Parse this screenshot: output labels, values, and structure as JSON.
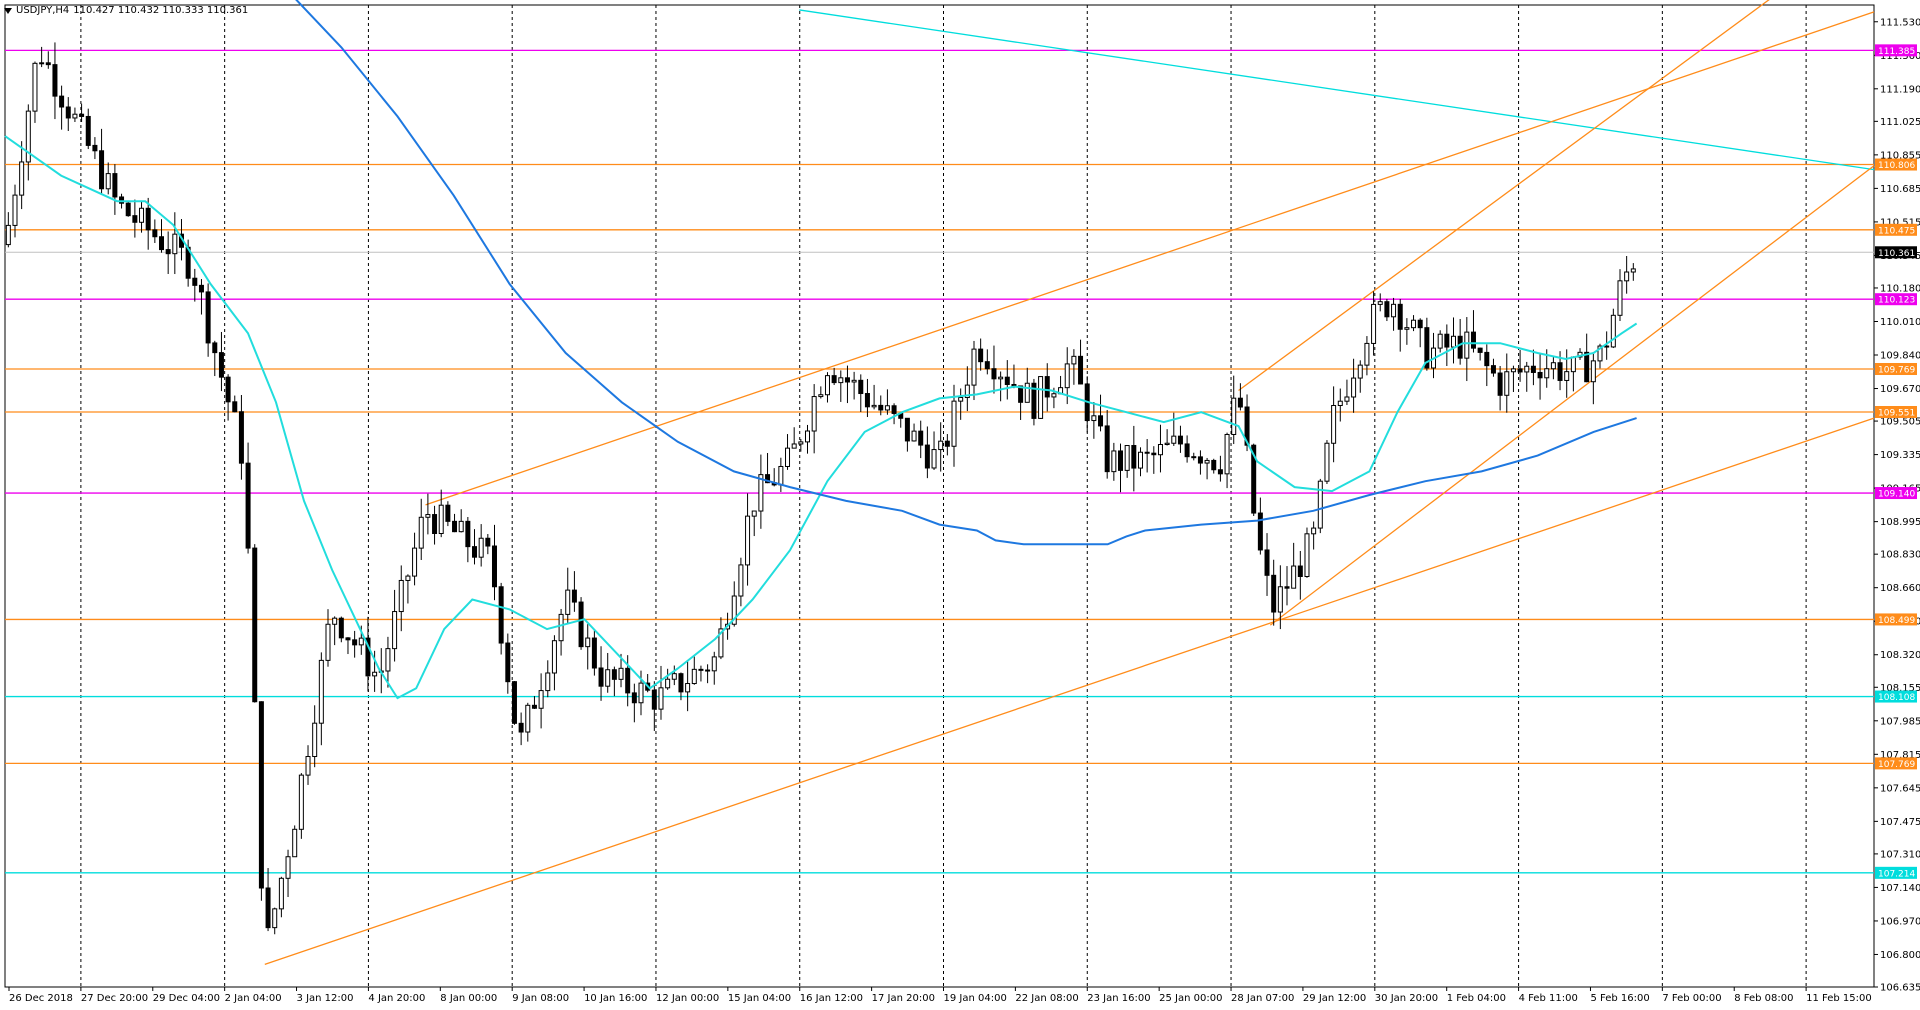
{
  "header": {
    "symbol": "USDJPY,H4",
    "quote": "110.427 110.432 110.333 110.361"
  },
  "colors": {
    "bull": "#ffffff",
    "bear": "#000000",
    "ema_fast": "#22dddd",
    "ma_slow": "#1e78e0",
    "orange": "#ff8c1a",
    "magenta": "#ee00ee",
    "cyan": "#00dddd",
    "grid": "#000000"
  },
  "chart_data": {
    "type": "candlestick",
    "y_range": [
      106.635,
      111.615
    ],
    "current_price": "110.361",
    "y_ticks": [
      "111.530",
      "111.360",
      "111.190",
      "111.025",
      "110.855",
      "110.685",
      "110.515",
      "110.345",
      "110.180",
      "110.010",
      "109.840",
      "109.670",
      "109.505",
      "109.335",
      "109.165",
      "108.995",
      "108.830",
      "108.660",
      "108.490",
      "108.320",
      "108.155",
      "107.985",
      "107.815",
      "107.645",
      "107.475",
      "107.310",
      "107.140",
      "106.970",
      "106.800",
      "106.635"
    ],
    "x_labels": [
      "26 Dec 2018",
      "27 Dec 20:00",
      "29 Dec 04:00",
      "2 Jan 04:00",
      "3 Jan 12:00",
      "4 Jan 20:00",
      "8 Jan 00:00",
      "9 Jan 08:00",
      "10 Jan 16:00",
      "12 Jan 00:00",
      "15 Jan 04:00",
      "16 Jan 12:00",
      "17 Jan 20:00",
      "19 Jan 04:00",
      "22 Jan 08:00",
      "23 Jan 16:00",
      "25 Jan 00:00",
      "28 Jan 07:00",
      "29 Jan 12:00",
      "30 Jan 20:00",
      "1 Feb 04:00",
      "4 Feb 11:00",
      "5 Feb 16:00",
      "7 Feb 00:00",
      "8 Feb 08:00",
      "11 Feb 15:00"
    ],
    "horizontal_levels": [
      {
        "price": 111.385,
        "label": "111.385",
        "color": "magenta"
      },
      {
        "price": 110.806,
        "label": "110.806",
        "color": "orange"
      },
      {
        "price": 110.475,
        "label": "110.475",
        "color": "orange"
      },
      {
        "price": 110.123,
        "label": "110.123",
        "color": "magenta"
      },
      {
        "price": 109.769,
        "label": "109.769",
        "color": "orange"
      },
      {
        "price": 109.551,
        "label": "109.551",
        "color": "orange"
      },
      {
        "price": 109.14,
        "label": "109.140",
        "color": "magenta"
      },
      {
        "price": 108.499,
        "label": "108.499",
        "color": "orange"
      },
      {
        "price": 108.108,
        "label": "108.108",
        "color": "cyan"
      },
      {
        "price": 107.769,
        "label": "107.769",
        "color": "orange"
      },
      {
        "price": 107.214,
        "label": "107.214",
        "color": "cyan"
      }
    ],
    "trend_lines": [
      {
        "color": "cyan",
        "from": [
          0.425,
          111.59
        ],
        "to": [
          1.0,
          110.78
        ]
      },
      {
        "color": "orange",
        "from": [
          0.225,
          109.08
        ],
        "to": [
          1.0,
          111.58
        ]
      },
      {
        "color": "orange",
        "from": [
          0.139,
          106.75
        ],
        "to": [
          1.0,
          109.52
        ]
      },
      {
        "color": "orange",
        "from": [
          0.677,
          108.47
        ],
        "to": [
          1.0,
          110.8
        ]
      },
      {
        "color": "orange",
        "from": [
          0.66,
          109.66
        ],
        "to": [
          0.945,
          111.65
        ]
      }
    ],
    "ema_fast": [
      [
        0.0,
        110.95
      ],
      [
        0.03,
        110.75
      ],
      [
        0.06,
        110.62
      ],
      [
        0.075,
        110.62
      ],
      [
        0.09,
        110.5
      ],
      [
        0.11,
        110.2
      ],
      [
        0.13,
        109.95
      ],
      [
        0.145,
        109.6
      ],
      [
        0.16,
        109.1
      ],
      [
        0.175,
        108.75
      ],
      [
        0.19,
        108.45
      ],
      [
        0.2,
        108.25
      ],
      [
        0.21,
        108.1
      ],
      [
        0.22,
        108.15
      ],
      [
        0.235,
        108.45
      ],
      [
        0.25,
        108.6
      ],
      [
        0.27,
        108.55
      ],
      [
        0.29,
        108.45
      ],
      [
        0.31,
        108.5
      ],
      [
        0.33,
        108.3
      ],
      [
        0.345,
        108.15
      ],
      [
        0.36,
        108.25
      ],
      [
        0.38,
        108.4
      ],
      [
        0.4,
        108.6
      ],
      [
        0.42,
        108.85
      ],
      [
        0.44,
        109.2
      ],
      [
        0.46,
        109.45
      ],
      [
        0.48,
        109.55
      ],
      [
        0.5,
        109.62
      ],
      [
        0.52,
        109.64
      ],
      [
        0.54,
        109.68
      ],
      [
        0.56,
        109.66
      ],
      [
        0.58,
        109.6
      ],
      [
        0.6,
        109.55
      ],
      [
        0.62,
        109.5
      ],
      [
        0.64,
        109.55
      ],
      [
        0.66,
        109.48
      ],
      [
        0.67,
        109.3
      ],
      [
        0.69,
        109.17
      ],
      [
        0.71,
        109.15
      ],
      [
        0.73,
        109.25
      ],
      [
        0.745,
        109.55
      ],
      [
        0.76,
        109.8
      ],
      [
        0.78,
        109.9
      ],
      [
        0.8,
        109.9
      ],
      [
        0.82,
        109.85
      ],
      [
        0.835,
        109.82
      ],
      [
        0.85,
        109.85
      ],
      [
        0.865,
        109.95
      ],
      [
        0.873,
        110.0
      ]
    ],
    "ma_slow": [
      [
        0.155,
        111.65
      ],
      [
        0.18,
        111.4
      ],
      [
        0.21,
        111.05
      ],
      [
        0.24,
        110.65
      ],
      [
        0.27,
        110.2
      ],
      [
        0.3,
        109.85
      ],
      [
        0.33,
        109.6
      ],
      [
        0.36,
        109.4
      ],
      [
        0.39,
        109.25
      ],
      [
        0.42,
        109.17
      ],
      [
        0.45,
        109.1
      ],
      [
        0.48,
        109.05
      ],
      [
        0.5,
        108.98
      ],
      [
        0.52,
        108.95
      ],
      [
        0.53,
        108.9
      ],
      [
        0.545,
        108.88
      ],
      [
        0.56,
        108.88
      ],
      [
        0.575,
        108.88
      ],
      [
        0.59,
        108.88
      ],
      [
        0.6,
        108.92
      ],
      [
        0.61,
        108.95
      ],
      [
        0.64,
        108.98
      ],
      [
        0.67,
        109.0
      ],
      [
        0.7,
        109.05
      ],
      [
        0.73,
        109.13
      ],
      [
        0.76,
        109.2
      ],
      [
        0.79,
        109.25
      ],
      [
        0.82,
        109.33
      ],
      [
        0.85,
        109.45
      ],
      [
        0.873,
        109.52
      ]
    ],
    "key_points": [
      [
        0.0,
        110.4
      ],
      [
        0.018,
        111.4
      ],
      [
        0.06,
        110.6
      ],
      [
        0.1,
        110.3
      ],
      [
        0.128,
        109.3
      ],
      [
        0.139,
        106.8
      ],
      [
        0.155,
        107.5
      ],
      [
        0.175,
        108.55
      ],
      [
        0.2,
        108.2
      ],
      [
        0.225,
        109.05
      ],
      [
        0.26,
        108.8
      ],
      [
        0.275,
        107.85
      ],
      [
        0.3,
        108.6
      ],
      [
        0.32,
        108.2
      ],
      [
        0.35,
        108.1
      ],
      [
        0.38,
        108.3
      ],
      [
        0.4,
        109.1
      ],
      [
        0.42,
        109.3
      ],
      [
        0.44,
        109.8
      ],
      [
        0.47,
        109.55
      ],
      [
        0.5,
        109.3
      ],
      [
        0.52,
        109.9
      ],
      [
        0.55,
        109.6
      ],
      [
        0.57,
        109.8
      ],
      [
        0.59,
        109.3
      ],
      [
        0.61,
        109.3
      ],
      [
        0.63,
        109.4
      ],
      [
        0.65,
        109.3
      ],
      [
        0.66,
        109.65
      ],
      [
        0.67,
        108.9
      ],
      [
        0.678,
        108.55
      ],
      [
        0.7,
        108.9
      ],
      [
        0.71,
        109.5
      ],
      [
        0.73,
        110.0
      ],
      [
        0.742,
        110.13
      ],
      [
        0.76,
        109.85
      ],
      [
        0.78,
        109.9
      ],
      [
        0.8,
        109.7
      ],
      [
        0.82,
        109.8
      ],
      [
        0.84,
        109.75
      ],
      [
        0.855,
        109.85
      ],
      [
        0.865,
        110.2
      ],
      [
        0.873,
        110.36
      ]
    ]
  }
}
